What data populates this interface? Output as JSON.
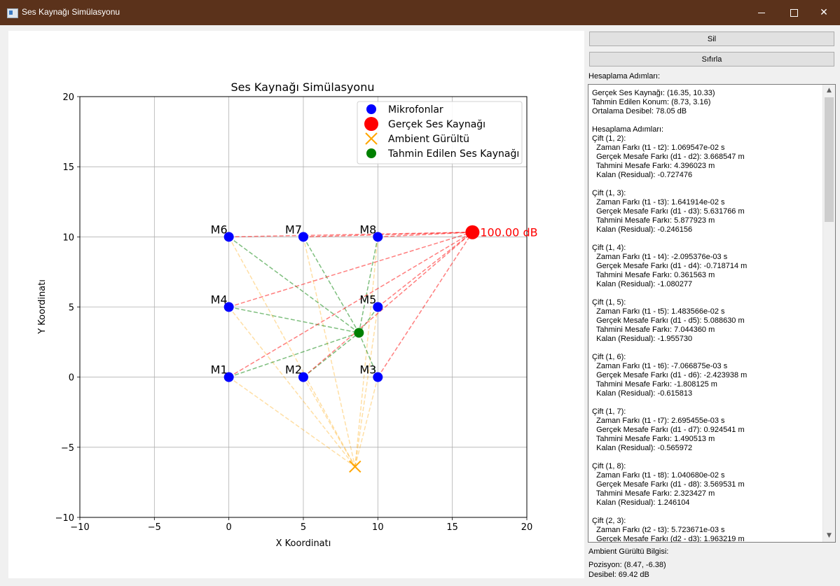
{
  "window": {
    "title": "Ses Kaynağı Simülasyonu"
  },
  "buttons": {
    "clear": "Sil",
    "reset": "Sıfırla"
  },
  "labels": {
    "steps_header": "Hesaplama Adımları:",
    "ambient_header": "Ambient Gürültü Bilgisi:",
    "ambient_position": "Pozisyon: (8.47, -6.38)",
    "ambient_decibel": "Desibel: 69.42 dB"
  },
  "log_lines": [
    "Gerçek Ses Kaynağı: (16.35, 10.33)",
    "Tahmin Edilen Konum: (8.73, 3.16)",
    "Ortalama Desibel: 78.05 dB",
    "",
    "Hesaplama Adımları:",
    "Çift (1, 2):",
    "  Zaman Farkı (t1 - t2): 1.069547e-02 s",
    "  Gerçek Mesafe Farkı (d1 - d2): 3.668547 m",
    "  Tahmini Mesafe Farkı: 4.396023 m",
    "  Kalan (Residual): -0.727476",
    "",
    "Çift (1, 3):",
    "  Zaman Farkı (t1 - t3): 1.641914e-02 s",
    "  Gerçek Mesafe Farkı (d1 - d3): 5.631766 m",
    "  Tahmini Mesafe Farkı: 5.877923 m",
    "  Kalan (Residual): -0.246156",
    "",
    "Çift (1, 4):",
    "  Zaman Farkı (t1 - t4): -2.095376e-03 s",
    "  Gerçek Mesafe Farkı (d1 - d4): -0.718714 m",
    "  Tahmini Mesafe Farkı: 0.361563 m",
    "  Kalan (Residual): -1.080277",
    "",
    "Çift (1, 5):",
    "  Zaman Farkı (t1 - t5): 1.483566e-02 s",
    "  Gerçek Mesafe Farkı (d1 - d5): 5.088630 m",
    "  Tahmini Mesafe Farkı: 7.044360 m",
    "  Kalan (Residual): -1.955730",
    "",
    "Çift (1, 6):",
    "  Zaman Farkı (t1 - t6): -7.066875e-03 s",
    "  Gerçek Mesafe Farkı (d1 - d6): -2.423938 m",
    "  Tahmini Mesafe Farkı: -1.808125 m",
    "  Kalan (Residual): -0.615813",
    "",
    "Çift (1, 7):",
    "  Zaman Farkı (t1 - t7): 2.695455e-03 s",
    "  Gerçek Mesafe Farkı (d1 - d7): 0.924541 m",
    "  Tahmini Mesafe Farkı: 1.490513 m",
    "  Kalan (Residual): -0.565972",
    "",
    "Çift (1, 8):",
    "  Zaman Farkı (t1 - t8): 1.040680e-02 s",
    "  Gerçek Mesafe Farkı (d1 - d8): 3.569531 m",
    "  Tahmini Mesafe Farkı: 2.323427 m",
    "  Kalan (Residual): 1.246104",
    "",
    "Çift (2, 3):",
    "  Zaman Farkı (t2 - t3): 5.723671e-03 s",
    "  Gerçek Mesafe Farkı (d2 - d3): 1.963219 m"
  ],
  "chart_data": {
    "type": "scatter",
    "title": "Ses Kaynağı Simülasyonu",
    "xlabel": "X Koordinatı",
    "ylabel": "Y Koordinatı",
    "xlim": [
      -10,
      20
    ],
    "ylim": [
      -10,
      20
    ],
    "xticks": [
      -10,
      -5,
      0,
      5,
      10,
      15,
      20
    ],
    "yticks": [
      -10,
      -5,
      0,
      5,
      10,
      15,
      20
    ],
    "grid": true,
    "legend_position": "top-right",
    "legend": [
      "Mikrofonlar",
      "Gerçek Ses Kaynağı",
      "Ambient Gürültü",
      "Tahmin Edilen Ses Kaynağı"
    ],
    "microphones": [
      {
        "label": "M1",
        "x": 0,
        "y": 0
      },
      {
        "label": "M2",
        "x": 5,
        "y": 0
      },
      {
        "label": "M3",
        "x": 10,
        "y": 0
      },
      {
        "label": "M4",
        "x": 0,
        "y": 5
      },
      {
        "label": "M5",
        "x": 10,
        "y": 5
      },
      {
        "label": "M6",
        "x": 0,
        "y": 10
      },
      {
        "label": "M7",
        "x": 5,
        "y": 10
      },
      {
        "label": "M8",
        "x": 10,
        "y": 10
      }
    ],
    "true_source": {
      "x": 16.35,
      "y": 10.33,
      "label": "100.00 dB"
    },
    "ambient_noise": {
      "x": 8.47,
      "y": -6.38
    },
    "estimated_source": {
      "x": 8.73,
      "y": 3.16
    },
    "colors": {
      "microphones": "#0000ff",
      "true_source": "#ff0000",
      "ambient_noise": "#ffa500",
      "estimated_source": "#008000"
    }
  }
}
